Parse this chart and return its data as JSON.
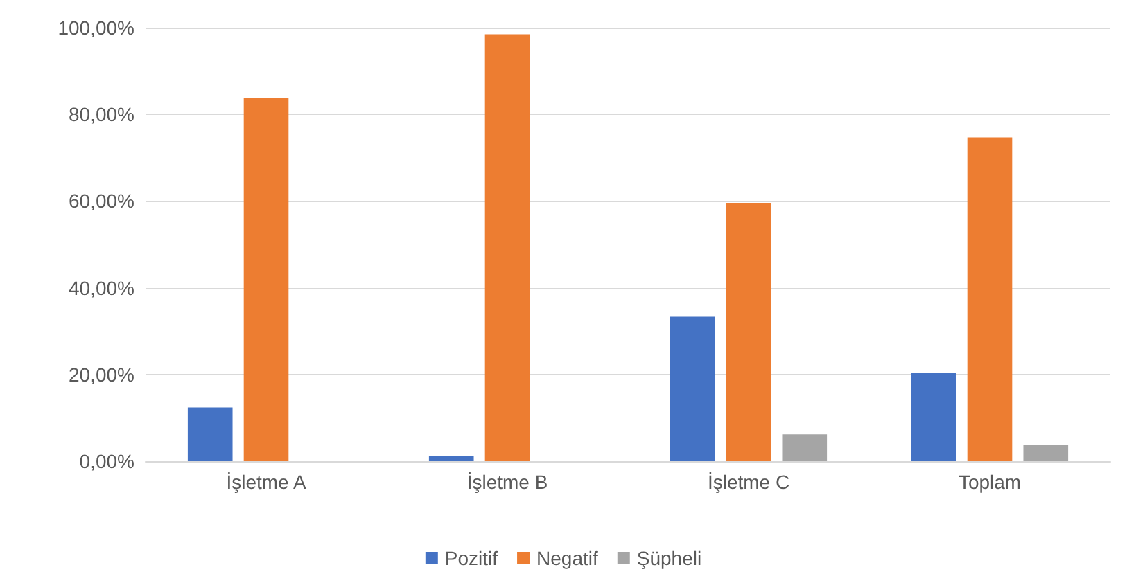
{
  "chart_data": {
    "type": "bar",
    "categories": [
      "İşletme A",
      "İşletme B",
      "İşletme C",
      "Toplam"
    ],
    "series": [
      {
        "name": "Pozitif",
        "color": "#4472c4",
        "values": [
          12.4,
          1.1,
          33.3,
          20.4
        ]
      },
      {
        "name": "Negatif",
        "color": "#ed7d31",
        "values": [
          83.8,
          98.5,
          59.6,
          74.7
        ]
      },
      {
        "name": "Şüpheli",
        "color": "#a5a5a5",
        "values": [
          0,
          0,
          6.2,
          3.8
        ]
      }
    ],
    "ylim": [
      0,
      100
    ],
    "yticks": [
      {
        "value": 0,
        "label": "0,00%"
      },
      {
        "value": 20,
        "label": "20,00%"
      },
      {
        "value": 40,
        "label": "40,00%"
      },
      {
        "value": 60,
        "label": "60,00%"
      },
      {
        "value": 80,
        "label": "80,00%"
      },
      {
        "value": 100,
        "label": "100,00%"
      }
    ],
    "grid": "y",
    "legend": "bottom"
  }
}
